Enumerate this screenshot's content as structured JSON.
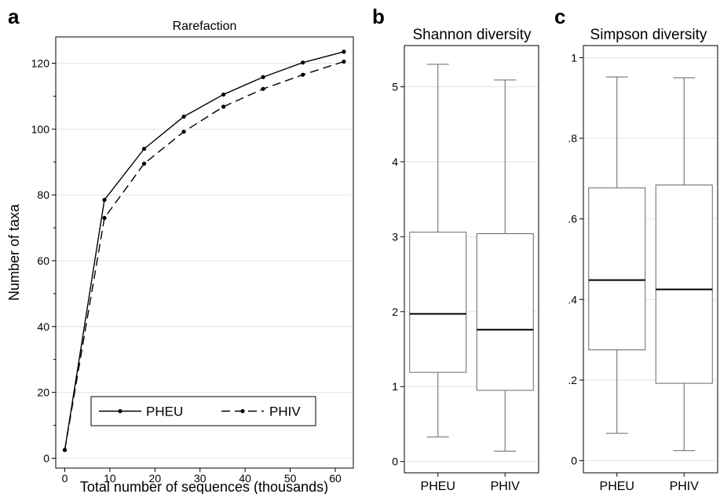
{
  "panels": {
    "a": {
      "letter": "a"
    },
    "b": {
      "letter": "b"
    },
    "c": {
      "letter": "c"
    }
  },
  "chart_data": [
    {
      "type": "line",
      "title": "Rarefaction",
      "xlabel": "Total number of sequences (thousands)",
      "ylabel": "Number of taxa",
      "xlim": [
        -2,
        64
      ],
      "ylim": [
        -3,
        128
      ],
      "xticks": [
        0,
        10,
        20,
        30,
        40,
        50,
        60
      ],
      "yticks": [
        0,
        20,
        40,
        60,
        80,
        100,
        120
      ],
      "yminor_ticks": [
        10,
        30,
        50,
        70,
        90,
        110
      ],
      "grid": "horizontal",
      "legend_position": "bottom",
      "series": [
        {
          "name": "PHEU",
          "style": "solid",
          "x": [
            0,
            8.8,
            17.6,
            26.4,
            35.2,
            44,
            52.8,
            61.9
          ],
          "y": [
            2.5,
            78.5,
            94,
            103.8,
            110.5,
            115.8,
            120.2,
            123.5
          ]
        },
        {
          "name": "PHIV",
          "style": "dashed",
          "x": [
            0,
            8.8,
            17.6,
            26.4,
            35.2,
            44,
            52.8,
            61.9
          ],
          "y": [
            2.5,
            73,
            89.5,
            99.2,
            106.8,
            112.2,
            116.5,
            120.5
          ]
        }
      ]
    },
    {
      "type": "box",
      "title": "Shannon diversity",
      "categories": [
        "PHEU",
        "PHIV"
      ],
      "ylim": [
        -0.15,
        5.55
      ],
      "yticks": [
        0,
        1,
        2,
        3,
        4,
        5
      ],
      "ytick_labels": [
        "0",
        "1",
        "2",
        "3",
        "4",
        "5"
      ],
      "grid": "horizontal",
      "boxes": [
        {
          "min": 0.33,
          "q1": 1.19,
          "median": 1.97,
          "q3": 3.06,
          "max": 5.3
        },
        {
          "min": 0.14,
          "q1": 0.95,
          "median": 1.76,
          "q3": 3.04,
          "max": 5.09
        }
      ]
    },
    {
      "type": "box",
      "title": "Simpson diversity",
      "categories": [
        "PHEU",
        "PHIV"
      ],
      "ylim": [
        -0.03,
        1.03
      ],
      "yticks": [
        0,
        0.2,
        0.4,
        0.6,
        0.8,
        1
      ],
      "ytick_labels": [
        "0",
        ".2",
        ".4",
        ".6",
        ".8",
        "1"
      ],
      "grid": "horizontal",
      "boxes": [
        {
          "min": 0.068,
          "q1": 0.275,
          "median": 0.448,
          "q3": 0.677,
          "max": 0.952
        },
        {
          "min": 0.025,
          "q1": 0.192,
          "median": 0.425,
          "q3": 0.684,
          "max": 0.95
        }
      ]
    }
  ]
}
